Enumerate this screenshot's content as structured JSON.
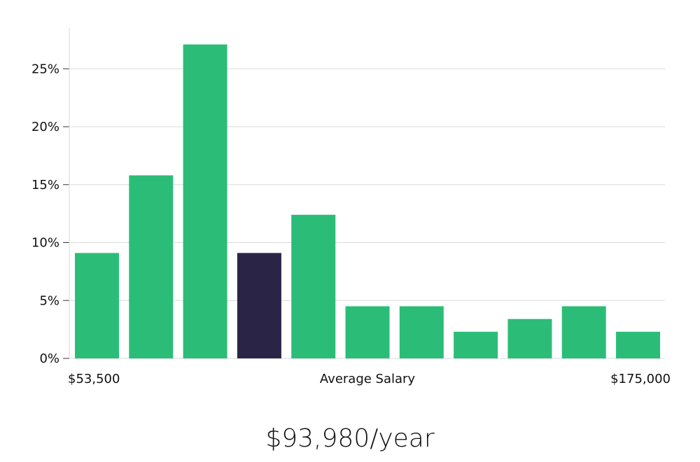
{
  "chart_data": {
    "type": "bar",
    "title": "",
    "xlabel": "Average Salary",
    "ylabel": "",
    "x_start_label": "$53,500",
    "x_end_label": "$175,000",
    "ylim": [
      0,
      0.285
    ],
    "yticks": [
      0,
      0.05,
      0.1,
      0.15,
      0.2,
      0.25
    ],
    "ytick_labels": [
      "0%",
      "5%",
      "10%",
      "15%",
      "20%",
      "25%"
    ],
    "grid": true,
    "values": [
      0.091,
      0.158,
      0.271,
      0.091,
      0.124,
      0.045,
      0.045,
      0.023,
      0.034,
      0.045,
      0.023
    ],
    "highlight_index": 3,
    "bar_color": "#2bbd77",
    "highlight_color": "#2a2546",
    "grid_color": "#d9d9d9"
  },
  "summary": {
    "average_salary": "$93,980/year"
  }
}
